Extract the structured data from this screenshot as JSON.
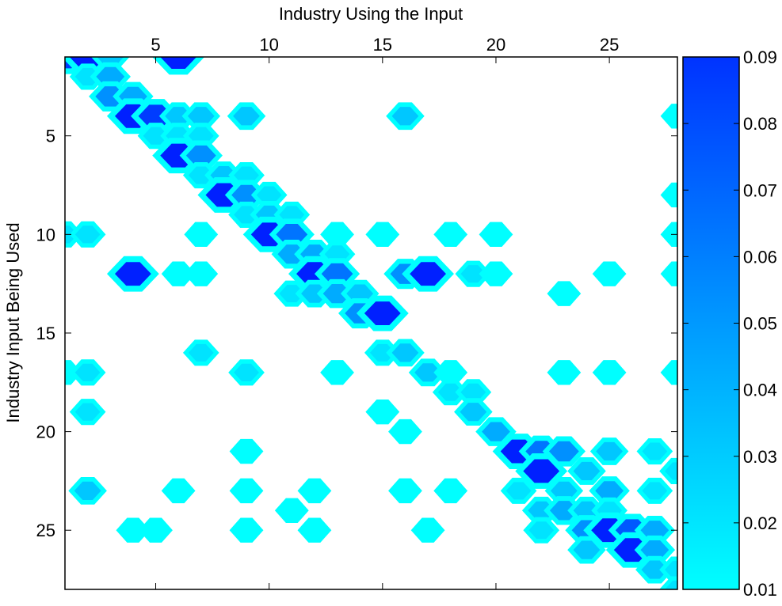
{
  "chart_data": {
    "type": "heatmap",
    "title": "",
    "xlabel": "Industry Using the Input",
    "ylabel": "Industry Input Being Used",
    "x_axis_position": "top",
    "y_axis_direction": "reversed",
    "xlim": [
      1,
      28
    ],
    "ylim": [
      1,
      28
    ],
    "xticks": [
      5,
      10,
      15,
      20,
      25
    ],
    "yticks": [
      5,
      10,
      15,
      20,
      25
    ],
    "colorbar": {
      "position": "right",
      "ticks": [
        "0.09",
        "0.08",
        "0.07",
        "0.06",
        "0.05",
        "0.04",
        "0.03",
        "0.02",
        "0.01"
      ],
      "range": [
        0.01,
        0.09
      ],
      "levels": [
        0.01,
        0.02,
        0.03,
        0.04,
        0.05,
        0.06,
        0.07,
        0.08,
        0.09
      ]
    },
    "colors": {
      "low": "#00ffff",
      "mid": "#00bfff",
      "midhigh": "#0080ff",
      "high": "#0040ff",
      "top": "#0020ff"
    },
    "cells": [
      {
        "x": 1,
        "y": 1,
        "v": 0.08
      },
      {
        "x": 2,
        "y": 1,
        "v": 0.09
      },
      {
        "x": 3,
        "y": 1,
        "v": 0.03
      },
      {
        "x": 6,
        "y": 1,
        "v": 0.09
      },
      {
        "x": 2,
        "y": 2,
        "v": 0.02
      },
      {
        "x": 3,
        "y": 2,
        "v": 0.04
      },
      {
        "x": 3,
        "y": 3,
        "v": 0.05
      },
      {
        "x": 4,
        "y": 3,
        "v": 0.04
      },
      {
        "x": 4,
        "y": 4,
        "v": 0.09
      },
      {
        "x": 5,
        "y": 4,
        "v": 0.08
      },
      {
        "x": 6,
        "y": 4,
        "v": 0.03
      },
      {
        "x": 7,
        "y": 4,
        "v": 0.03
      },
      {
        "x": 9,
        "y": 4,
        "v": 0.03
      },
      {
        "x": 16,
        "y": 4,
        "v": 0.03
      },
      {
        "x": 28,
        "y": 4,
        "v": 0.01
      },
      {
        "x": 5,
        "y": 5,
        "v": 0.02
      },
      {
        "x": 6,
        "y": 5,
        "v": 0.02
      },
      {
        "x": 7,
        "y": 5,
        "v": 0.02
      },
      {
        "x": 6,
        "y": 6,
        "v": 0.09
      },
      {
        "x": 7,
        "y": 6,
        "v": 0.05
      },
      {
        "x": 7,
        "y": 7,
        "v": 0.02
      },
      {
        "x": 8,
        "y": 7,
        "v": 0.03
      },
      {
        "x": 9,
        "y": 7,
        "v": 0.02
      },
      {
        "x": 8,
        "y": 8,
        "v": 0.09
      },
      {
        "x": 9,
        "y": 8,
        "v": 0.05
      },
      {
        "x": 10,
        "y": 8,
        "v": 0.02
      },
      {
        "x": 28,
        "y": 8,
        "v": 0.01
      },
      {
        "x": 9,
        "y": 9,
        "v": 0.02
      },
      {
        "x": 10,
        "y": 9,
        "v": 0.03
      },
      {
        "x": 11,
        "y": 9,
        "v": 0.02
      },
      {
        "x": 1,
        "y": 10,
        "v": 0.02
      },
      {
        "x": 2,
        "y": 10,
        "v": 0.02
      },
      {
        "x": 7,
        "y": 10,
        "v": 0.01
      },
      {
        "x": 10,
        "y": 10,
        "v": 0.09
      },
      {
        "x": 11,
        "y": 10,
        "v": 0.06
      },
      {
        "x": 13,
        "y": 10,
        "v": 0.01
      },
      {
        "x": 15,
        "y": 10,
        "v": 0.01
      },
      {
        "x": 18,
        "y": 10,
        "v": 0.01
      },
      {
        "x": 20,
        "y": 10,
        "v": 0.01
      },
      {
        "x": 28,
        "y": 10,
        "v": 0.01
      },
      {
        "x": 11,
        "y": 11,
        "v": 0.04
      },
      {
        "x": 12,
        "y": 11,
        "v": 0.04
      },
      {
        "x": 13,
        "y": 11,
        "v": 0.02
      },
      {
        "x": 4,
        "y": 12,
        "v": 0.09
      },
      {
        "x": 6,
        "y": 12,
        "v": 0.01
      },
      {
        "x": 7,
        "y": 12,
        "v": 0.01
      },
      {
        "x": 12,
        "y": 12,
        "v": 0.09
      },
      {
        "x": 13,
        "y": 12,
        "v": 0.06
      },
      {
        "x": 16,
        "y": 12,
        "v": 0.05
      },
      {
        "x": 17,
        "y": 12,
        "v": 0.09
      },
      {
        "x": 19,
        "y": 12,
        "v": 0.02
      },
      {
        "x": 20,
        "y": 12,
        "v": 0.01
      },
      {
        "x": 25,
        "y": 12,
        "v": 0.01
      },
      {
        "x": 28,
        "y": 12,
        "v": 0.01
      },
      {
        "x": 11,
        "y": 13,
        "v": 0.02
      },
      {
        "x": 12,
        "y": 13,
        "v": 0.03
      },
      {
        "x": 13,
        "y": 13,
        "v": 0.04
      },
      {
        "x": 14,
        "y": 13,
        "v": 0.03
      },
      {
        "x": 23,
        "y": 13,
        "v": 0.01
      },
      {
        "x": 14,
        "y": 14,
        "v": 0.05
      },
      {
        "x": 15,
        "y": 14,
        "v": 0.09
      },
      {
        "x": 7,
        "y": 16,
        "v": 0.02
      },
      {
        "x": 15,
        "y": 16,
        "v": 0.02
      },
      {
        "x": 16,
        "y": 16,
        "v": 0.03
      },
      {
        "x": 1,
        "y": 17,
        "v": 0.01
      },
      {
        "x": 2,
        "y": 17,
        "v": 0.02
      },
      {
        "x": 9,
        "y": 17,
        "v": 0.02
      },
      {
        "x": 13,
        "y": 17,
        "v": 0.01
      },
      {
        "x": 17,
        "y": 17,
        "v": 0.03
      },
      {
        "x": 18,
        "y": 17,
        "v": 0.01
      },
      {
        "x": 23,
        "y": 17,
        "v": 0.01
      },
      {
        "x": 25,
        "y": 17,
        "v": 0.01
      },
      {
        "x": 28,
        "y": 17,
        "v": 0.01
      },
      {
        "x": 18,
        "y": 18,
        "v": 0.02
      },
      {
        "x": 19,
        "y": 18,
        "v": 0.02
      },
      {
        "x": 2,
        "y": 19,
        "v": 0.02
      },
      {
        "x": 15,
        "y": 19,
        "v": 0.01
      },
      {
        "x": 19,
        "y": 19,
        "v": 0.03
      },
      {
        "x": 20,
        "y": 20,
        "v": 0.04
      },
      {
        "x": 16,
        "y": 20,
        "v": 0.01
      },
      {
        "x": 9,
        "y": 21,
        "v": 0.01
      },
      {
        "x": 21,
        "y": 21,
        "v": 0.09
      },
      {
        "x": 22,
        "y": 21,
        "v": 0.06
      },
      {
        "x": 23,
        "y": 21,
        "v": 0.05
      },
      {
        "x": 25,
        "y": 21,
        "v": 0.03
      },
      {
        "x": 27,
        "y": 21,
        "v": 0.02
      },
      {
        "x": 22,
        "y": 22,
        "v": 0.09
      },
      {
        "x": 24,
        "y": 22,
        "v": 0.03
      },
      {
        "x": 28,
        "y": 22,
        "v": 0.02
      },
      {
        "x": 2,
        "y": 23,
        "v": 0.03
      },
      {
        "x": 6,
        "y": 23,
        "v": 0.01
      },
      {
        "x": 9,
        "y": 23,
        "v": 0.01
      },
      {
        "x": 12,
        "y": 23,
        "v": 0.01
      },
      {
        "x": 16,
        "y": 23,
        "v": 0.01
      },
      {
        "x": 18,
        "y": 23,
        "v": 0.01
      },
      {
        "x": 21,
        "y": 23,
        "v": 0.02
      },
      {
        "x": 23,
        "y": 23,
        "v": 0.03
      },
      {
        "x": 25,
        "y": 23,
        "v": 0.04
      },
      {
        "x": 27,
        "y": 23,
        "v": 0.02
      },
      {
        "x": 11,
        "y": 24,
        "v": 0.01
      },
      {
        "x": 22,
        "y": 24,
        "v": 0.03
      },
      {
        "x": 23,
        "y": 24,
        "v": 0.04
      },
      {
        "x": 24,
        "y": 24,
        "v": 0.03
      },
      {
        "x": 25,
        "y": 24,
        "v": 0.02
      },
      {
        "x": 4,
        "y": 25,
        "v": 0.01
      },
      {
        "x": 5,
        "y": 25,
        "v": 0.01
      },
      {
        "x": 9,
        "y": 25,
        "v": 0.01
      },
      {
        "x": 12,
        "y": 25,
        "v": 0.01
      },
      {
        "x": 17,
        "y": 25,
        "v": 0.01
      },
      {
        "x": 22,
        "y": 25,
        "v": 0.02
      },
      {
        "x": 24,
        "y": 25,
        "v": 0.05
      },
      {
        "x": 25,
        "y": 25,
        "v": 0.09
      },
      {
        "x": 26,
        "y": 25,
        "v": 0.07
      },
      {
        "x": 27,
        "y": 25,
        "v": 0.04
      },
      {
        "x": 24,
        "y": 26,
        "v": 0.03
      },
      {
        "x": 26,
        "y": 26,
        "v": 0.09
      },
      {
        "x": 27,
        "y": 26,
        "v": 0.04
      },
      {
        "x": 27,
        "y": 27,
        "v": 0.03
      },
      {
        "x": 28,
        "y": 27,
        "v": 0.02
      },
      {
        "x": 28,
        "y": 28,
        "v": 0.02
      }
    ]
  }
}
